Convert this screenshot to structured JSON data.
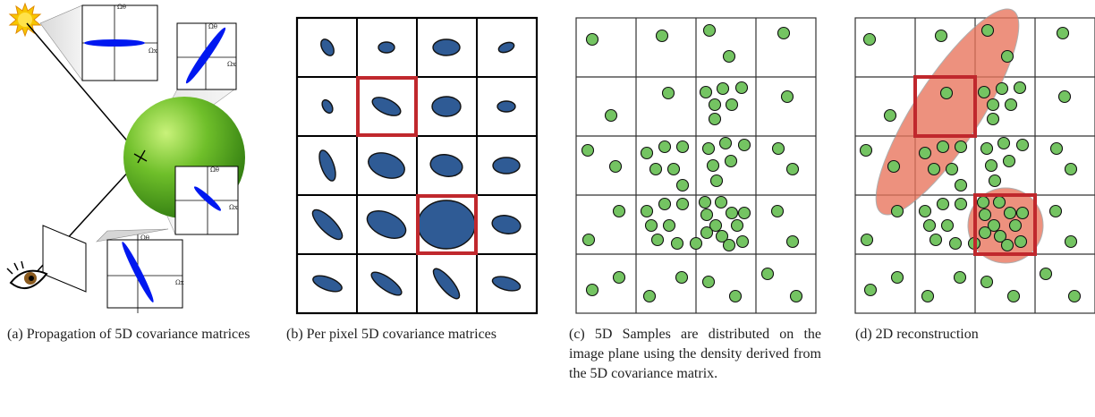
{
  "captions": {
    "a": "(a) Propagation of 5D covariance matrices",
    "b": "(b) Per pixel 5D covariance matrices",
    "c": "(c) 5D Samples are distributed on the image plane using the density derived from the 5D covariance matrix.",
    "d": "(d) 2D reconstruction"
  },
  "axis_labels": {
    "top_y": "Ωθ",
    "top_x": "Ωx",
    "right_y": "Ωθ",
    "right_x": "Ωx",
    "mid_y": "Ωθ",
    "mid_x": "Ωx",
    "bot_y": "Ωθ",
    "bot_x": "Ωx"
  },
  "colors": {
    "ellipse_blue": "#2f5b95",
    "highlight_red": "#c0282d",
    "sample_green": "#74c462",
    "reconstruction_orange": "#e8735a",
    "sphere_green": "#6fbf2a",
    "sun_yellow": "#f7c600"
  },
  "icons": [
    "sun-icon",
    "eye-icon",
    "sphere-icon"
  ]
}
